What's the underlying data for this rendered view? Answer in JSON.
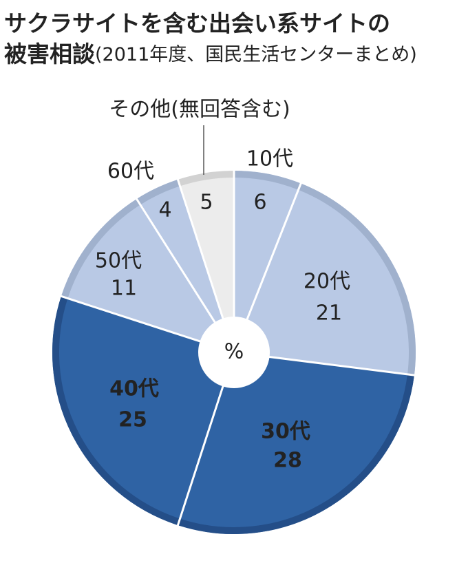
{
  "chart_data": {
    "type": "pie",
    "title": [
      "サクラサイトを含む出会い系サイトの",
      "被害相談"
    ],
    "subtitle": "(2011年度、国民生活センターまとめ)",
    "center_label": "%",
    "categories": [
      "10代",
      "20代",
      "30代",
      "40代",
      "50代",
      "60代",
      "その他(無回答含む)"
    ],
    "values": [
      6,
      21,
      28,
      25,
      11,
      4,
      5
    ],
    "colors": [
      "#b9c9e5",
      "#b9c9e5",
      "#2f63a4",
      "#2f63a4",
      "#b9c9e5",
      "#b9c9e5",
      "#ececec"
    ],
    "rim_colors": [
      "#a0b1cd",
      "#a0b1cd",
      "#244e88",
      "#244e88",
      "#a0b1cd",
      "#a0b1cd",
      "#d2d2d2"
    ],
    "label_colors": [
      "#222222",
      "#222222",
      "#ffffff",
      "#ffffff",
      "#222222",
      "#222222",
      "#222222"
    ]
  }
}
